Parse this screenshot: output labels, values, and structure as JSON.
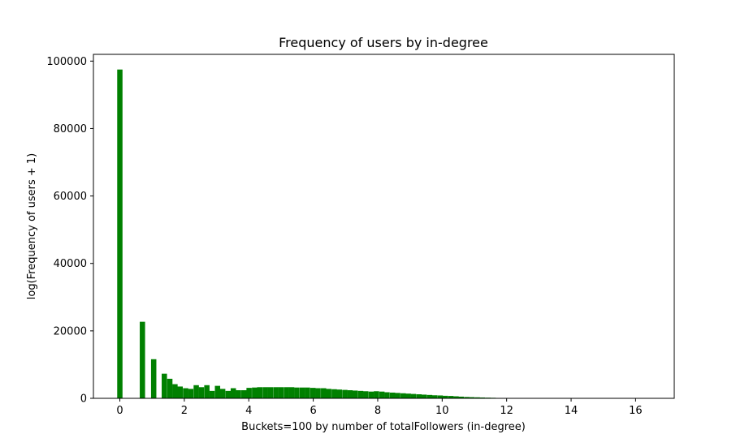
{
  "chart_data": {
    "type": "bar",
    "title": "Frequency of users by in-degree",
    "xlabel": "Buckets=100 by number of totalFollowers (in-degree)",
    "ylabel": "log(Frequency of users + 1)",
    "xlim": [
      -0.82,
      17.2
    ],
    "ylim": [
      0,
      102000
    ],
    "bar_width": 0.1645,
    "color": "#008000",
    "grid": false,
    "x_ticks": [
      0,
      2,
      4,
      6,
      8,
      10,
      12,
      14,
      16
    ],
    "x_tick_labels": [
      "0",
      "2",
      "4",
      "6",
      "8",
      "10",
      "12",
      "14",
      "16"
    ],
    "y_ticks": [
      0,
      20000,
      40000,
      60000,
      80000,
      100000
    ],
    "y_tick_labels": [
      "0",
      "20000",
      "40000",
      "60000",
      "80000",
      "100000"
    ],
    "x": [
      0.0,
      0.7,
      1.05,
      1.38,
      1.55,
      1.71,
      1.87,
      2.04,
      2.2,
      2.37,
      2.53,
      2.7,
      2.86,
      3.03,
      3.19,
      3.36,
      3.52,
      3.68,
      3.85,
      4.01,
      4.18,
      4.34,
      4.51,
      4.67,
      4.84,
      5.0,
      5.17,
      5.33,
      5.49,
      5.66,
      5.82,
      5.99,
      6.15,
      6.32,
      6.48,
      6.65,
      6.81,
      6.98,
      7.14,
      7.3,
      7.47,
      7.63,
      7.8,
      7.96,
      8.13,
      8.29,
      8.46,
      8.62,
      8.79,
      8.95,
      9.11,
      9.28,
      9.44,
      9.61,
      9.77,
      9.94,
      10.1,
      10.27,
      10.43,
      10.59,
      10.76,
      10.92,
      11.09,
      11.25,
      11.42,
      11.58,
      11.75,
      11.91,
      12.08,
      12.24,
      12.4,
      12.57,
      12.73,
      12.9,
      13.06,
      13.23,
      13.39,
      13.56,
      13.72,
      13.89,
      14.05,
      14.21,
      14.38,
      14.54,
      14.71,
      14.87,
      15.04,
      15.2,
      15.37,
      15.53,
      15.69,
      15.86,
      16.02,
      16.19,
      16.35
    ],
    "values": [
      97500,
      22700,
      11600,
      7300,
      5800,
      4200,
      3500,
      3000,
      2800,
      3900,
      3300,
      3900,
      2200,
      3700,
      2800,
      2200,
      3000,
      2400,
      2400,
      3100,
      3200,
      3300,
      3300,
      3300,
      3300,
      3300,
      3300,
      3300,
      3200,
      3200,
      3200,
      3100,
      3000,
      3000,
      2800,
      2700,
      2600,
      2500,
      2400,
      2300,
      2200,
      2100,
      2000,
      2100,
      2000,
      1800,
      1700,
      1600,
      1500,
      1400,
      1300,
      1200,
      1100,
      1000,
      900,
      850,
      750,
      700,
      600,
      500,
      400,
      350,
      300,
      250,
      200,
      160,
      120,
      100,
      70,
      60,
      50,
      40,
      30,
      30,
      20,
      20,
      20,
      15,
      15,
      10,
      10,
      10,
      10,
      8,
      8,
      6,
      6,
      5,
      5,
      4,
      4,
      3,
      3,
      2,
      2
    ]
  }
}
